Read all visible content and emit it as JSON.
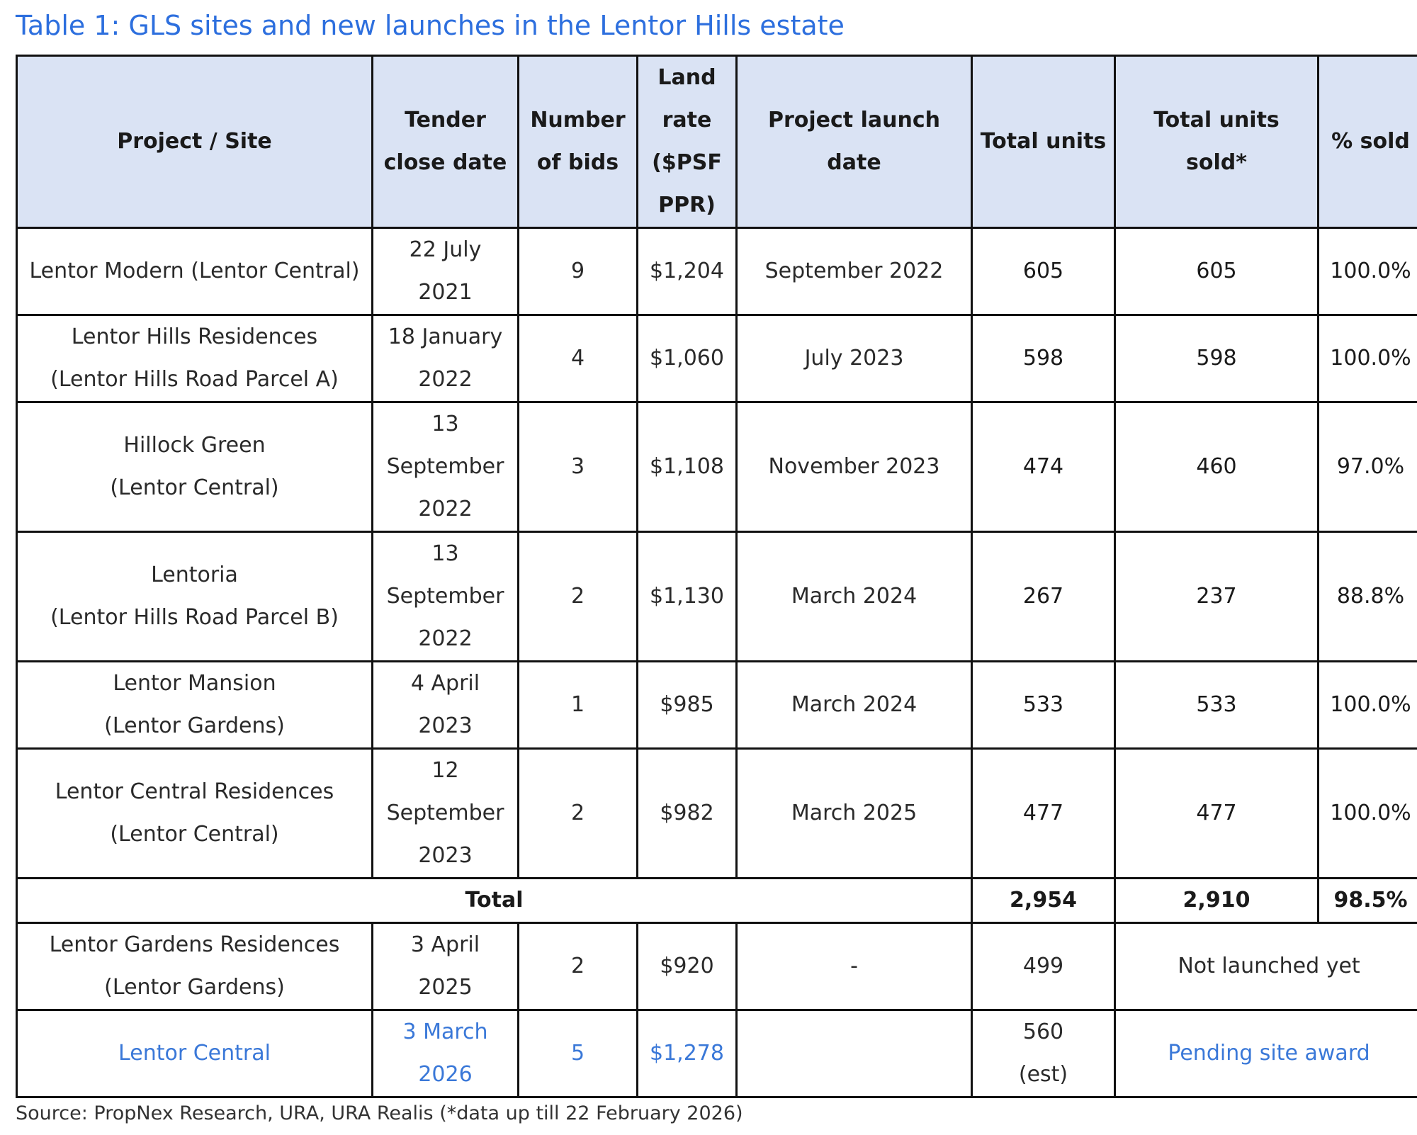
{
  "title": "Table 1: GLS sites and new launches in the Lentor Hills estate",
  "headers": {
    "project": "Project / Site",
    "tender_l1": "Tender",
    "tender_l2": "close date",
    "bids_l1": "Number",
    "bids_l2": "of bids",
    "land_l1": "Land",
    "land_l2": "rate",
    "land_l3": "($PSF",
    "land_l4": "PPR)",
    "launch": "Project launch date",
    "units": "Total units",
    "sold": "Total units sold*",
    "pct": "% sold"
  },
  "rows": [
    {
      "project_l1": "Lentor Modern (Lentor Central)",
      "tender_l1": "22 July",
      "tender_l2": "2021",
      "bids": "9",
      "land_rate": "$1,204",
      "launch": "September 2022",
      "units": "605",
      "sold": "605",
      "pct": "100.0%"
    },
    {
      "project_l1": "Lentor Hills Residences",
      "project_l2": "(Lentor Hills Road Parcel A)",
      "tender_l1": "18 January",
      "tender_l2": "2022",
      "bids": "4",
      "land_rate": "$1,060",
      "launch": "July 2023",
      "units": "598",
      "sold": "598",
      "pct": "100.0%"
    },
    {
      "project_l1": "Hillock Green",
      "project_l2": "(Lentor Central)",
      "tender_l1": "13",
      "tender_l2": "September",
      "tender_l3": "2022",
      "bids": "3",
      "land_rate": "$1,108",
      "launch": "November 2023",
      "units": "474",
      "sold": "460",
      "pct": "97.0%"
    },
    {
      "project_l1": "Lentoria",
      "project_l2": "(Lentor Hills Road Parcel B)",
      "tender_l1": "13",
      "tender_l2": "September",
      "tender_l3": "2022",
      "bids": "2",
      "land_rate": "$1,130",
      "launch": "March 2024",
      "units": "267",
      "sold": "237",
      "pct": "88.8%"
    },
    {
      "project_l1": "Lentor Mansion",
      "project_l2": "(Lentor Gardens)",
      "tender_l1": "4 April",
      "tender_l2": "2023",
      "bids": "1",
      "land_rate": "$985",
      "launch": "March 2024",
      "units": "533",
      "sold": "533",
      "pct": "100.0%"
    },
    {
      "project_l1": "Lentor Central Residences",
      "project_l2": "(Lentor Central)",
      "tender_l1": "12",
      "tender_l2": "September",
      "tender_l3": "2023",
      "bids": "2",
      "land_rate": "$982",
      "launch": "March 2025",
      "units": "477",
      "sold": "477",
      "pct": "100.0%"
    }
  ],
  "total": {
    "label": "Total",
    "units": "2,954",
    "sold": "2,910",
    "pct": "98.5%"
  },
  "unlaunched": {
    "project_l1": "Lentor Gardens Residences",
    "project_l2": "(Lentor Gardens)",
    "tender_l1": "3 April",
    "tender_l2": "2025",
    "bids": "2",
    "land_rate": "$920",
    "launch": "-",
    "units": "499",
    "status": "Not launched yet"
  },
  "pending": {
    "project_l1": "Lentor Central",
    "tender_l1": "3 March",
    "tender_l2": "2026",
    "bids": "5",
    "land_rate": "$1,278",
    "launch": "",
    "units_l1": "560",
    "units_l2": "(est)",
    "status": "Pending site award"
  },
  "source": "Source: PropNex Research, URA, URA Realis (*data up till 22 February 2026)"
}
